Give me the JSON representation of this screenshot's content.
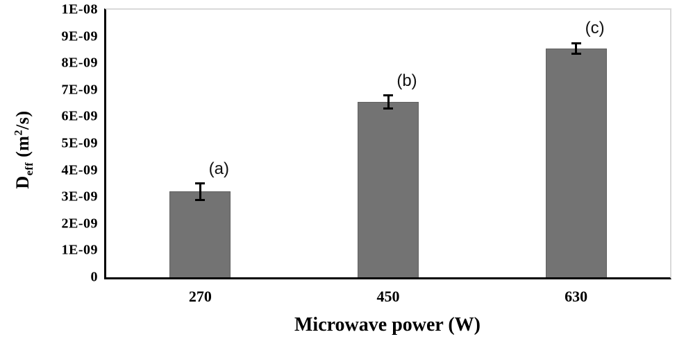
{
  "chart_data": {
    "type": "bar",
    "title": "",
    "xlabel": "Microwave power (W)",
    "ylabel": "Deff (m2/s)",
    "ylabel_parts": {
      "symbol": "D",
      "subscript": "eff",
      "unit_open": " (m",
      "exponent": "2",
      "unit_close": "/s)"
    },
    "categories": [
      "270",
      "450",
      "630"
    ],
    "values": [
      3.2e-09,
      6.55e-09,
      8.55e-09
    ],
    "errors": [
      3e-10,
      2.5e-10,
      2e-10
    ],
    "bar_annotations": [
      "(a)",
      "(b)",
      "(c)"
    ],
    "y_tick_labels": [
      "0",
      "1E-09",
      "2E-09",
      "3E-09",
      "4E-09",
      "5E-09",
      "6E-09",
      "7E-09",
      "8E-09",
      "9E-09",
      "1E-08"
    ],
    "ylim": [
      0,
      1e-08
    ],
    "y_tick_step": 1e-09,
    "grid": false,
    "legend": null,
    "colors": {
      "bar_fill": "#737373",
      "bar_border": "#606060",
      "error_bar": "#000000",
      "axis": "#000000",
      "plot_border": "#d9d9d9",
      "background": "#ffffff",
      "text": "#000000"
    }
  }
}
